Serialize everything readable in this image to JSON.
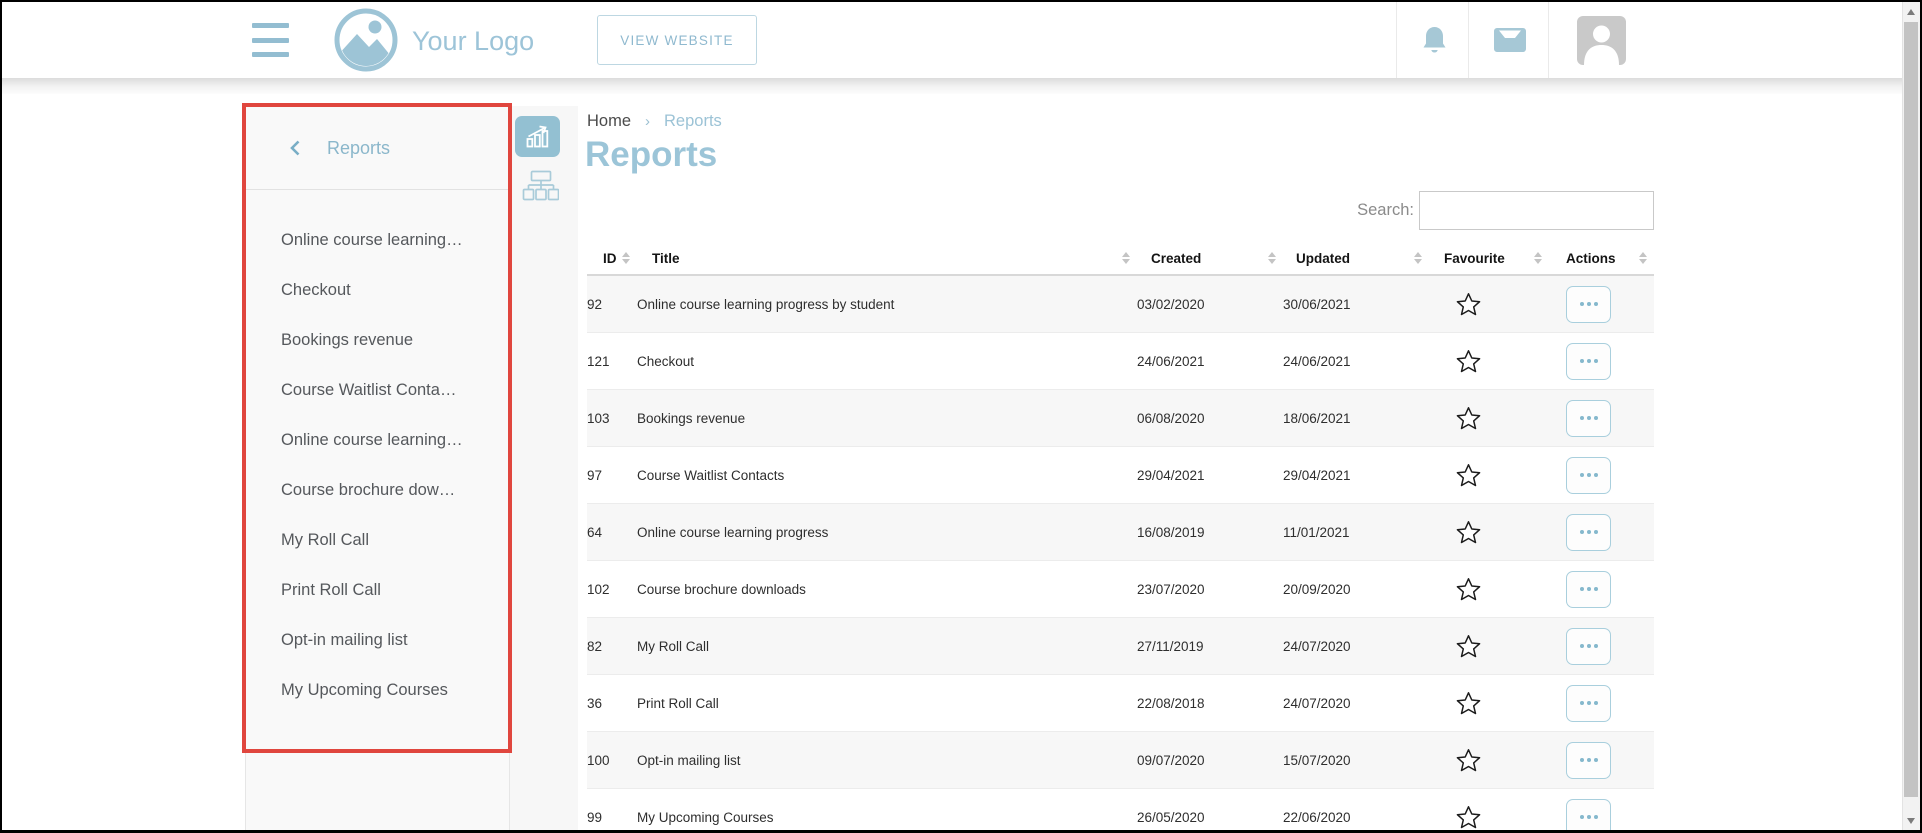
{
  "header": {
    "logo_text": "Your Logo",
    "view_website_label": "VIEW WEBSITE"
  },
  "sidebar": {
    "back_chevron": "‹",
    "title": "Reports",
    "items": [
      "Online course learning…",
      "Checkout",
      "Bookings revenue",
      "Course Waitlist Conta…",
      "Online course learning…",
      "Course brochure dow…",
      "My Roll Call",
      "Print Roll Call",
      "Opt-in mailing list",
      "My Upcoming Courses"
    ]
  },
  "breadcrumb": {
    "home": "Home",
    "separator": "›",
    "current": "Reports"
  },
  "page": {
    "title": "Reports"
  },
  "search": {
    "label": "Search:",
    "value": ""
  },
  "table": {
    "headers": [
      "ID",
      "Title",
      "Created",
      "Updated",
      "Favourite",
      "Actions"
    ],
    "rows": [
      {
        "id": "92",
        "title": "Online course learning progress by student",
        "created": "03/02/2020",
        "updated": "30/06/2021"
      },
      {
        "id": "121",
        "title": "Checkout",
        "created": "24/06/2021",
        "updated": "24/06/2021"
      },
      {
        "id": "103",
        "title": "Bookings revenue",
        "created": "06/08/2020",
        "updated": "18/06/2021"
      },
      {
        "id": "97",
        "title": "Course Waitlist Contacts",
        "created": "29/04/2021",
        "updated": "29/04/2021"
      },
      {
        "id": "64",
        "title": "Online course learning progress",
        "created": "16/08/2019",
        "updated": "11/01/2021"
      },
      {
        "id": "102",
        "title": "Course brochure downloads",
        "created": "23/07/2020",
        "updated": "20/09/2020"
      },
      {
        "id": "82",
        "title": "My Roll Call",
        "created": "27/11/2019",
        "updated": "24/07/2020"
      },
      {
        "id": "36",
        "title": "Print Roll Call",
        "created": "22/08/2018",
        "updated": "24/07/2020"
      },
      {
        "id": "100",
        "title": "Opt-in mailing list",
        "created": "09/07/2020",
        "updated": "15/07/2020"
      },
      {
        "id": "99",
        "title": "My Upcoming Courses",
        "created": "26/05/2020",
        "updated": "22/06/2020"
      }
    ]
  },
  "icons": {
    "menu": "hamburger-icon",
    "logo": "image-logo-icon",
    "notifications": "bell-icon",
    "messages": "inbox-icon",
    "user": "avatar-person-icon",
    "panel_chart": "bar-chart-icon",
    "panel_sitemap": "sitemap-icon",
    "favourite": "star-icon",
    "row_actions": "ellipsis-icon",
    "sort": "sort-arrows-icon"
  },
  "colors": {
    "accent_blue": "#9cc3d6",
    "annotation_red": "#e0463e",
    "row_stripe": "#f7f7f7",
    "text_dark": "#2e2e2e"
  }
}
